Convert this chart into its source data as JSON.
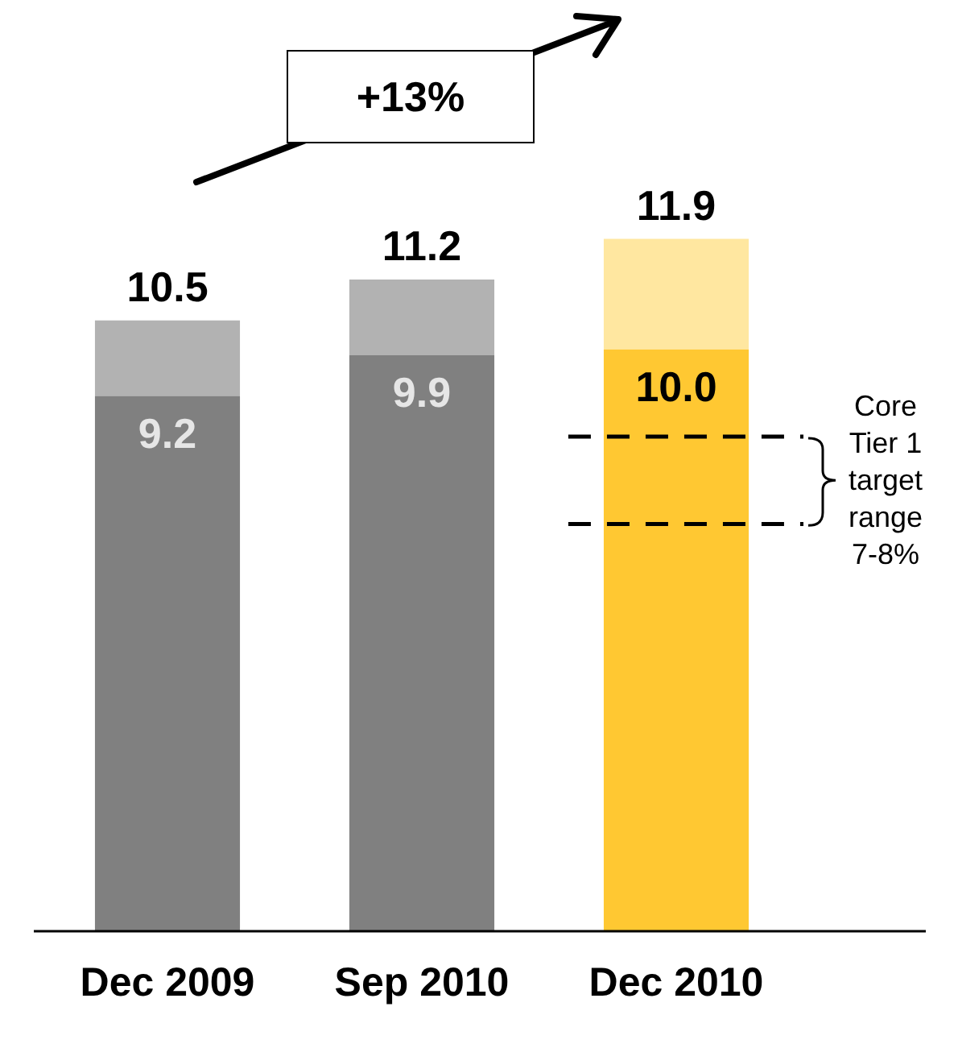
{
  "chart_data": {
    "type": "bar",
    "stacked": true,
    "categories": [
      "Dec 2009",
      "Sep 2010",
      "Dec 2010"
    ],
    "series": [
      {
        "values": [
          9.2,
          9.9,
          10.0
        ],
        "colors": [
          "#808080",
          "#808080",
          "#ffc832"
        ],
        "value_labels": [
          "9.2",
          "9.9",
          "10.0"
        ]
      },
      {
        "values": [
          1.3,
          1.3,
          1.9
        ],
        "colors": [
          "#b2b2b2",
          "#b2b2b2",
          "#ffe7a0"
        ]
      }
    ],
    "totals": [
      "10.5",
      "11.2",
      "11.9"
    ],
    "ref_lines": [
      {
        "axis": "y",
        "value": 8.5,
        "color": "#000000",
        "line_style": "dashed"
      },
      {
        "axis": "y",
        "value": 7.0,
        "color": "#000000",
        "line_style": "dashed"
      }
    ],
    "annotations": [
      "+13%",
      "Core Tier 1 target range 7-8%"
    ]
  }
}
